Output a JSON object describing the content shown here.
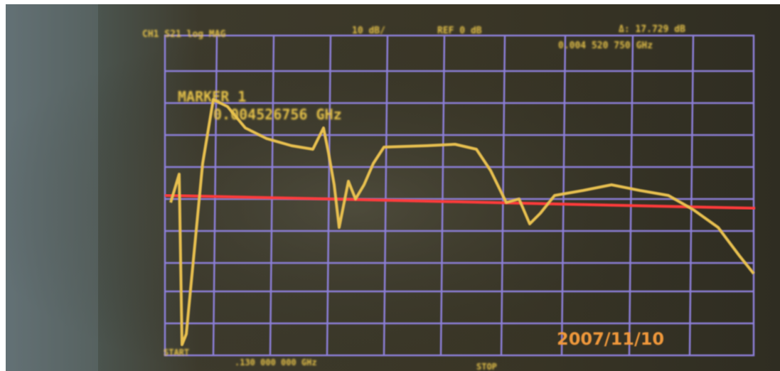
{
  "screen": {
    "header": {
      "channel": "CH1 S21 log MAG",
      "scale": "10 dB/",
      "reference": "REF 0 dB",
      "delta": "Δ: 17.729 dB",
      "delta_freq": "0.004 520 750 GHz"
    },
    "marker": {
      "label": "MARKER 1",
      "frequency": "0.004526756 GHz"
    },
    "footer": {
      "start": "START",
      "start_freq": ".130 000 000 GHz",
      "stop": "STOP"
    },
    "date": "2007/11/10"
  }
}
